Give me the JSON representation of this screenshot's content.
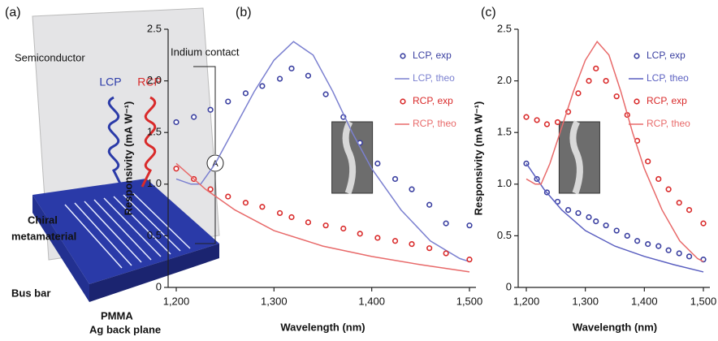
{
  "diagram": {
    "panel": "(a)",
    "semiconductor": "Semiconductor",
    "contact": "Indium contact",
    "lcp": "LCP",
    "rcp": "RCP",
    "ammeter": "A",
    "chiral": "Chiral",
    "metamaterial": "metamaterial",
    "bus_bar": "Bus bar",
    "pmma": "PMMA",
    "back_plane": "Ag back plane"
  },
  "chart_data": [
    {
      "type": "line",
      "panel": "(b)",
      "xlabel": "Wavelength (nm)",
      "ylabel": "Responsivity (mA W⁻¹)",
      "xlim": [
        1200,
        1500
      ],
      "xticks": [
        {
          "value": 1200,
          "label": "1,200"
        },
        {
          "value": 1300,
          "label": "1,300"
        },
        {
          "value": 1400,
          "label": "1,400"
        },
        {
          "value": 1500,
          "label": "1,500"
        }
      ],
      "ylim": [
        0,
        2.5
      ],
      "yticks": [
        0,
        0.5,
        {
          "value": 1,
          "label": "1.0"
        },
        1.5,
        {
          "value": 2,
          "label": "2.0"
        },
        2.5
      ],
      "legend": "upper right",
      "series": [
        {
          "name": "LCP, exp",
          "color": "#3a3fa0",
          "style": "markers",
          "x": [
            1200,
            1218,
            1235,
            1253,
            1271,
            1288,
            1306,
            1318,
            1335,
            1353,
            1371,
            1388,
            1406,
            1424,
            1441,
            1459,
            1476,
            1500
          ],
          "values": [
            1.6,
            1.65,
            1.72,
            1.8,
            1.88,
            1.95,
            2.02,
            2.12,
            2.05,
            1.87,
            1.65,
            1.4,
            1.2,
            1.05,
            0.95,
            0.8,
            0.62,
            0.6
          ]
        },
        {
          "name": "LCP, theo",
          "color": "#7b80d0",
          "style": "line",
          "x": [
            1200,
            1215,
            1225,
            1240,
            1260,
            1280,
            1300,
            1320,
            1340,
            1360,
            1380,
            1400,
            1430,
            1460,
            1490,
            1500
          ],
          "values": [
            1.05,
            1.0,
            1.0,
            1.2,
            1.55,
            1.9,
            2.2,
            2.38,
            2.25,
            1.9,
            1.5,
            1.15,
            0.75,
            0.45,
            0.28,
            0.25
          ]
        },
        {
          "name": "RCP, exp",
          "color": "#d92a2a",
          "style": "markers",
          "x": [
            1200,
            1218,
            1235,
            1253,
            1271,
            1288,
            1306,
            1318,
            1335,
            1353,
            1371,
            1388,
            1406,
            1424,
            1441,
            1459,
            1476,
            1500
          ],
          "values": [
            1.15,
            1.05,
            0.95,
            0.88,
            0.82,
            0.78,
            0.72,
            0.68,
            0.63,
            0.6,
            0.57,
            0.52,
            0.48,
            0.45,
            0.42,
            0.38,
            0.33,
            0.27
          ]
        },
        {
          "name": "RCP, theo",
          "color": "#e86a6a",
          "style": "line",
          "x": [
            1200,
            1230,
            1260,
            1300,
            1350,
            1400,
            1450,
            1500
          ],
          "values": [
            1.2,
            0.95,
            0.75,
            0.55,
            0.4,
            0.3,
            0.22,
            0.15
          ]
        }
      ]
    },
    {
      "type": "line",
      "panel": "(c)",
      "xlabel": "Wavelength (nm)",
      "ylabel": "Responsivity (mA W⁻¹)",
      "xlim": [
        1200,
        1500
      ],
      "xticks": [
        {
          "value": 1200,
          "label": "1,200"
        },
        {
          "value": 1300,
          "label": "1,300"
        },
        {
          "value": 1400,
          "label": "1,400"
        },
        {
          "value": 1500,
          "label": "1,500"
        }
      ],
      "ylim": [
        0,
        2.5
      ],
      "yticks": [
        0,
        0.5,
        {
          "value": 1,
          "label": "1.0"
        },
        1.5,
        {
          "value": 2,
          "label": "2.0"
        },
        2.5
      ],
      "legend": "upper right",
      "series": [
        {
          "name": "LCP, exp",
          "color": "#3a3fa0",
          "style": "markers",
          "x": [
            1200,
            1218,
            1235,
            1253,
            1271,
            1288,
            1306,
            1318,
            1335,
            1353,
            1371,
            1388,
            1406,
            1424,
            1441,
            1459,
            1476,
            1500
          ],
          "values": [
            1.2,
            1.05,
            0.92,
            0.83,
            0.75,
            0.72,
            0.68,
            0.64,
            0.6,
            0.55,
            0.5,
            0.45,
            0.42,
            0.4,
            0.36,
            0.33,
            0.3,
            0.27
          ]
        },
        {
          "name": "LCP, theo",
          "color": "#5a5fc0",
          "style": "line",
          "x": [
            1200,
            1230,
            1260,
            1300,
            1350,
            1400,
            1450,
            1500
          ],
          "values": [
            1.2,
            0.95,
            0.75,
            0.55,
            0.4,
            0.3,
            0.22,
            0.15
          ]
        },
        {
          "name": "RCP, exp",
          "color": "#d92a2a",
          "style": "markers",
          "x": [
            1200,
            1218,
            1235,
            1253,
            1271,
            1288,
            1306,
            1318,
            1335,
            1353,
            1371,
            1388,
            1406,
            1424,
            1441,
            1459,
            1476,
            1500
          ],
          "values": [
            1.65,
            1.62,
            1.58,
            1.6,
            1.7,
            1.88,
            2.0,
            2.12,
            2.0,
            1.85,
            1.67,
            1.42,
            1.22,
            1.05,
            0.95,
            0.82,
            0.75,
            0.62
          ]
        },
        {
          "name": "RCP, theo",
          "color": "#e86a6a",
          "style": "line",
          "x": [
            1200,
            1215,
            1225,
            1240,
            1260,
            1280,
            1300,
            1320,
            1340,
            1360,
            1380,
            1400,
            1430,
            1460,
            1490,
            1500
          ],
          "values": [
            1.05,
            1.0,
            1.0,
            1.2,
            1.55,
            1.9,
            2.2,
            2.38,
            2.25,
            1.9,
            1.5,
            1.15,
            0.75,
            0.45,
            0.28,
            0.25
          ]
        }
      ]
    }
  ]
}
